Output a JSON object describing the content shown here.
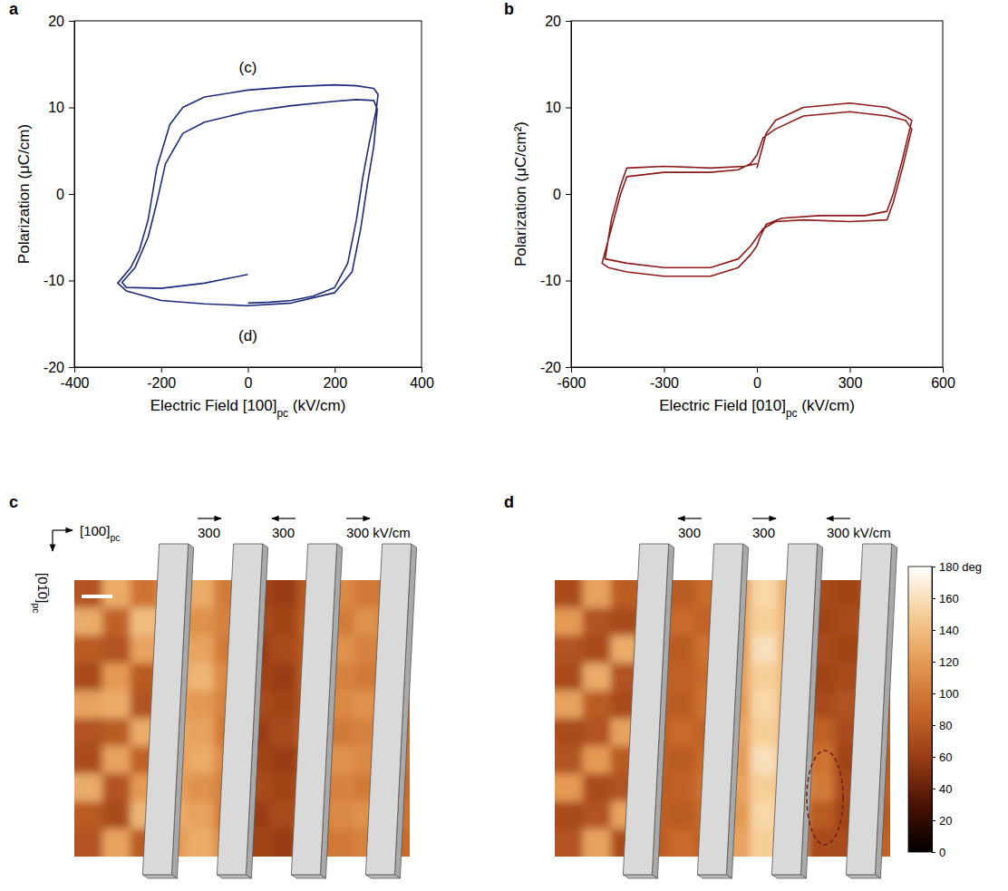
{
  "chart_data": [
    {
      "panel": "a",
      "type": "line",
      "xlabel": "Electric Field [100]pc (kV/cm)",
      "ylabel": "Polarization (μC/cm)",
      "xlim": [
        -400,
        400
      ],
      "xticks": [
        -400,
        -200,
        0,
        200,
        400
      ],
      "ylim": [
        -20,
        20
      ],
      "yticks": [
        -20,
        -10,
        0,
        10,
        20
      ],
      "series": [
        {
          "color": "#1f2a7a",
          "x": [
            0,
            50,
            100,
            150,
            200,
            230,
            250,
            265,
            280,
            295,
            300,
            290,
            250,
            200,
            100,
            0,
            -100,
            -150,
            -180,
            -210,
            -230,
            -250,
            -270,
            -300,
            -280,
            -200,
            -100,
            0,
            100,
            200,
            240,
            260,
            275,
            290,
            298,
            290,
            250,
            200,
            100,
            0,
            -100,
            -150,
            -190,
            -210,
            -230,
            -260,
            -290,
            -280,
            -200,
            -100,
            0
          ],
          "values": [
            -12.6,
            -12.5,
            -12.3,
            -11.8,
            -10.8,
            -8,
            -3,
            2,
            6,
            9.5,
            11.5,
            12.2,
            12.5,
            12.6,
            12.4,
            12,
            11.2,
            10,
            8,
            3,
            -3,
            -6.5,
            -8.5,
            -10.3,
            -11.2,
            -12.3,
            -12.7,
            -12.9,
            -12.6,
            -11.4,
            -9,
            -4,
            1,
            5.5,
            9.8,
            10.8,
            10.9,
            10.7,
            10.2,
            9.5,
            8.3,
            7,
            3.5,
            -1,
            -5,
            -8.5,
            -10.2,
            -10.8,
            -10.9,
            -10.3,
            -9.3
          ]
        }
      ],
      "annotations": [
        {
          "text": "(c)",
          "x": 0,
          "y": 14.5
        },
        {
          "text": "(d)",
          "x": 0,
          "y": -16.5
        }
      ]
    },
    {
      "panel": "b",
      "type": "line",
      "xlabel": "Electric Field [010]pc (kV/cm)",
      "ylabel": "Polarization (μC/cm²)",
      "xlim": [
        -600,
        600
      ],
      "xticks": [
        -600,
        -300,
        0,
        300,
        600
      ],
      "ylim": [
        -20,
        20
      ],
      "yticks": [
        -20,
        -10,
        0,
        10,
        20
      ],
      "series": [
        {
          "color": "#8b1a1a",
          "x": [
            0,
            15,
            30,
            60,
            150,
            300,
            420,
            480,
            500,
            470,
            440,
            420,
            350,
            200,
            80,
            30,
            10,
            0,
            -20,
            -60,
            -150,
            -300,
            -420,
            -480,
            -500,
            -470,
            -440,
            -420,
            -300,
            -150,
            -60,
            -20,
            0,
            20,
            60,
            150,
            300,
            420,
            480,
            500,
            470,
            440,
            420,
            300,
            150,
            60,
            20,
            0,
            -20,
            -60,
            -150,
            -300,
            -420,
            -490,
            -470,
            -440,
            -420,
            -300,
            -150,
            -40,
            0
          ],
          "values": [
            3,
            5,
            7,
            8.5,
            10,
            10.5,
            10,
            9,
            8.5,
            4,
            0,
            -2,
            -2.5,
            -2.5,
            -2.8,
            -3.5,
            -5,
            -6,
            -7,
            -8.5,
            -9.5,
            -9.5,
            -9,
            -8.5,
            -8,
            -4,
            0,
            2,
            2.5,
            2.5,
            2.8,
            3.5,
            4.5,
            6.5,
            7.5,
            9,
            9.5,
            9,
            8.5,
            7.5,
            3,
            -1,
            -3,
            -3.2,
            -3,
            -3.2,
            -4,
            -5,
            -6,
            -7.5,
            -8.5,
            -8.5,
            -8,
            -7.5,
            -3,
            1,
            3,
            3.2,
            3,
            3.2,
            3.5
          ]
        }
      ]
    }
  ],
  "images": [
    {
      "panel": "c",
      "direction_labels": {
        "x": "[100]pc",
        "y": "[01̅0]pc"
      },
      "field_labels": [
        {
          "text": "300",
          "direction": "right"
        },
        {
          "text": "300",
          "direction": "left"
        },
        {
          "text": "300 kV/cm",
          "direction": "right"
        }
      ],
      "phase": [
        [
          75,
          130,
          95,
          120,
          130,
          100,
          65,
          60,
          80,
          110,
          100,
          90
        ],
        [
          130,
          85,
          140,
          125,
          115,
          105,
          70,
          65,
          85,
          100,
          115,
          90
        ],
        [
          80,
          75,
          125,
          130,
          125,
          100,
          60,
          70,
          80,
          115,
          105,
          95
        ],
        [
          70,
          120,
          80,
          120,
          135,
          110,
          65,
          60,
          85,
          105,
          100,
          90
        ],
        [
          125,
          130,
          75,
          125,
          120,
          105,
          70,
          65,
          80,
          110,
          115,
          95
        ],
        [
          75,
          80,
          130,
          130,
          125,
          100,
          60,
          70,
          85,
          100,
          105,
          90
        ],
        [
          70,
          125,
          85,
          120,
          130,
          110,
          65,
          60,
          80,
          115,
          110,
          95
        ],
        [
          130,
          75,
          120,
          125,
          115,
          105,
          70,
          65,
          85,
          105,
          100,
          90
        ],
        [
          80,
          70,
          135,
          130,
          125,
          100,
          60,
          70,
          80,
          110,
          115,
          95
        ],
        [
          75,
          125,
          80,
          120,
          130,
          110,
          65,
          60,
          85,
          100,
          105,
          90
        ]
      ]
    },
    {
      "panel": "d",
      "field_labels": [
        {
          "text": "300",
          "direction": "left"
        },
        {
          "text": "300",
          "direction": "right"
        },
        {
          "text": "300 kV/cm",
          "direction": "left"
        }
      ],
      "phase": [
        [
          70,
          125,
          80,
          85,
          80,
          90,
          120,
          155,
          130,
          70,
          65,
          80
        ],
        [
          120,
          75,
          70,
          80,
          90,
          85,
          125,
          150,
          135,
          65,
          70,
          85
        ],
        [
          75,
          70,
          130,
          85,
          80,
          95,
          120,
          160,
          130,
          70,
          65,
          80
        ],
        [
          70,
          130,
          75,
          80,
          85,
          90,
          125,
          150,
          135,
          65,
          70,
          85
        ],
        [
          125,
          80,
          70,
          85,
          80,
          95,
          120,
          155,
          130,
          70,
          75,
          80
        ],
        [
          70,
          75,
          125,
          80,
          90,
          85,
          125,
          150,
          135,
          85,
          70,
          85
        ],
        [
          75,
          120,
          80,
          85,
          80,
          90,
          120,
          160,
          130,
          95,
          65,
          80
        ],
        [
          120,
          70,
          75,
          80,
          85,
          95,
          125,
          150,
          135,
          100,
          70,
          85
        ],
        [
          70,
          75,
          125,
          85,
          80,
          90,
          120,
          155,
          130,
          80,
          65,
          80
        ],
        [
          75,
          125,
          70,
          80,
          90,
          85,
          125,
          150,
          135,
          70,
          70,
          85
        ]
      ],
      "colorbar": {
        "range": [
          0,
          180
        ],
        "ticks": [
          0,
          20,
          40,
          60,
          80,
          100,
          120,
          140,
          160,
          {
            "value": 180,
            "label": "180 deg"
          }
        ]
      }
    }
  ]
}
